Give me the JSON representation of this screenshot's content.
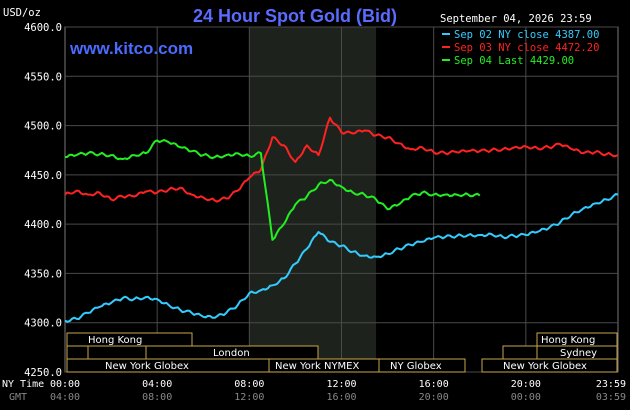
{
  "header": {
    "unit": "USD/oz",
    "title": "24 Hour Spot Gold (Bid)",
    "date": "September 04, 2026 23:59",
    "site": "www.kitco.com"
  },
  "legend": [
    {
      "label": "Sep 02 NY close 4387.00",
      "color": "#33ccff"
    },
    {
      "label": "Sep 03 NY close 4472.20",
      "color": "#ff2222"
    },
    {
      "label": "Sep 04 Last 4429.00",
      "color": "#22ee22"
    }
  ],
  "axis": {
    "x_row1_label": "NY Time",
    "x_row2_label": "GMT",
    "x_ticks_ny": [
      "00:00",
      "04:00",
      "08:00",
      "12:00",
      "16:00",
      "20:00",
      "23:59"
    ],
    "x_ticks_gmt": [
      "04:00",
      "08:00",
      "12:00",
      "16:00",
      "20:00",
      "00:00",
      "03:59"
    ],
    "y_ticks": [
      "4600.0",
      "4550.0",
      "4500.0",
      "4450.0",
      "4400.0",
      "4350.0",
      "4300.0",
      "4250.0"
    ]
  },
  "sessions": {
    "hong_kong": "Hong Kong",
    "london": "London",
    "ny_globex": "New York Globex",
    "ny_nymex": "New York NYMEX",
    "ny_globex_short": "NY Globex",
    "sydney": "Sydney"
  },
  "chart_data": {
    "type": "line",
    "title": "24 Hour Spot Gold (Bid)",
    "xlabel": "NY Time",
    "ylabel": "USD/oz",
    "ylim": [
      4250,
      4600
    ],
    "xlim_hours": [
      0,
      24
    ],
    "grid": true,
    "legend_position": "top-right",
    "highlight_region_hours": [
      8,
      13.5
    ],
    "series": [
      {
        "name": "Sep 02 NY close 4387.00",
        "color": "#33ccff",
        "x": [
          0,
          0.5,
          1,
          1.5,
          2,
          2.5,
          3,
          3.5,
          4,
          4.5,
          5,
          5.5,
          6,
          6.5,
          7,
          7.5,
          8,
          8.5,
          9,
          9.5,
          10,
          10.5,
          11,
          11.5,
          12,
          12.5,
          13,
          13.5,
          14,
          14.5,
          15,
          15.5,
          16,
          16.5,
          17,
          17.5,
          18,
          18.5,
          19,
          19.5,
          20,
          20.5,
          21,
          21.5,
          22,
          22.5,
          23,
          23.5,
          24
        ],
        "y": [
          4302,
          4304,
          4310,
          4316,
          4320,
          4325,
          4324,
          4326,
          4324,
          4318,
          4313,
          4310,
          4306,
          4305,
          4310,
          4318,
          4330,
          4333,
          4338,
          4345,
          4360,
          4375,
          4392,
          4382,
          4378,
          4372,
          4368,
          4367,
          4370,
          4375,
          4379,
          4382,
          4386,
          4387,
          4388,
          4389,
          4389,
          4390,
          4387,
          4388,
          4389,
          4392,
          4396,
          4402,
          4410,
          4416,
          4421,
          4425,
          4430
        ]
      },
      {
        "name": "Sep 03 NY close 4472.20",
        "color": "#ff2222",
        "x": [
          0,
          0.5,
          1,
          1.5,
          2,
          2.5,
          3,
          3.5,
          4,
          4.5,
          5,
          5.5,
          6,
          6.5,
          7,
          7.5,
          8,
          8.5,
          9,
          9.5,
          10,
          10.5,
          11,
          11.5,
          12,
          12.5,
          13,
          13.5,
          14,
          14.5,
          15,
          15.5,
          16,
          16.5,
          17,
          17.5,
          18,
          18.5,
          19,
          19.5,
          20,
          20.5,
          21,
          21.5,
          22,
          22.5,
          23,
          23.5,
          24
        ],
        "y": [
          4430,
          4434,
          4430,
          4432,
          4425,
          4428,
          4428,
          4433,
          4432,
          4435,
          4437,
          4430,
          4427,
          4424,
          4426,
          4434,
          4447,
          4455,
          4488,
          4480,
          4463,
          4480,
          4470,
          4508,
          4493,
          4492,
          4495,
          4490,
          4488,
          4482,
          4476,
          4478,
          4473,
          4472,
          4473,
          4474,
          4474,
          4475,
          4476,
          4478,
          4479,
          4477,
          4478,
          4481,
          4476,
          4472,
          4473,
          4471,
          4470
        ]
      },
      {
        "name": "Sep 04 Last 4429.00",
        "color": "#22ee22",
        "x": [
          0,
          0.5,
          1,
          1.5,
          2,
          2.5,
          3,
          3.5,
          4,
          4.5,
          5,
          5.5,
          6,
          6.5,
          7,
          7.5,
          8,
          8.5,
          9,
          9.5,
          10,
          10.5,
          11,
          11.5,
          12,
          12.5,
          13,
          13.5,
          14,
          14.5,
          15,
          15.5,
          16,
          16.5,
          17,
          17.5,
          18
        ],
        "y": [
          4468,
          4470,
          4472,
          4471,
          4470,
          4466,
          4470,
          4472,
          4485,
          4483,
          4478,
          4474,
          4470,
          4468,
          4470,
          4472,
          4469,
          4472,
          4384,
          4400,
          4420,
          4428,
          4440,
          4445,
          4438,
          4432,
          4430,
          4425,
          4415,
          4420,
          4428,
          4432,
          4430,
          4430,
          4430,
          4430,
          4429
        ]
      }
    ]
  }
}
